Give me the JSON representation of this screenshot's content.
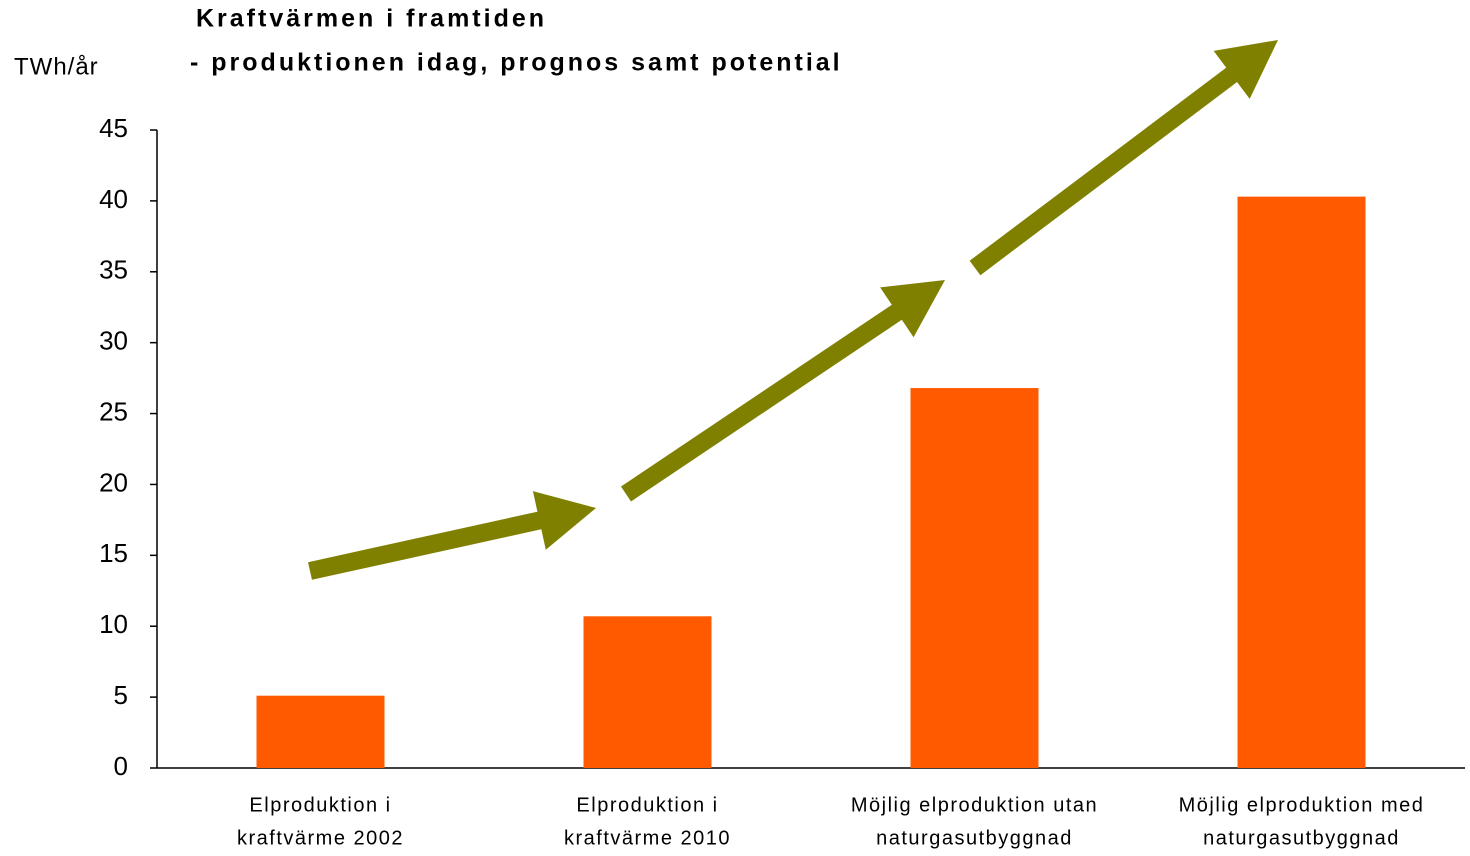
{
  "chart_data": {
    "type": "bar",
    "title": [
      "Kraftvärmen i framtiden",
      "- produktionen idag, prognos samt potential"
    ],
    "y_label": "TWh/år",
    "categories": [
      [
        "Elproduktion i",
        "kraftvärme 2002"
      ],
      [
        "Elproduktion i",
        "kraftvärme 2010"
      ],
      [
        "Möjlig elproduktion utan",
        "naturgasutbyggnad"
      ],
      [
        "Möjlig elproduktion med",
        "naturgasutbyggnad"
      ]
    ],
    "values": [
      5.1,
      10.7,
      26.8,
      40.3
    ],
    "color": "#ff5a00",
    "ylim": [
      0,
      45
    ],
    "yticks": [
      0,
      5,
      10,
      15,
      20,
      25,
      30,
      35,
      40,
      45
    ],
    "grid": false
  }
}
